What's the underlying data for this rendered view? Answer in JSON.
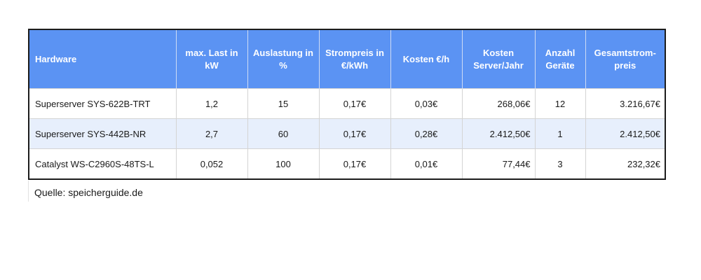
{
  "table": {
    "headers": [
      "Hardware",
      "max. Last in kW",
      "Auslastung in %",
      "Strompreis in €/kWh",
      "Kosten €/h",
      "Kosten Server/Jahr",
      "Anzahl Geräte",
      "Gesamtstrom-preis"
    ],
    "rows": [
      [
        "Superserver SYS-622B-TRT",
        "1,2",
        "15",
        "0,17€",
        "0,03€",
        "268,06€",
        "12",
        "3.216,67€"
      ],
      [
        "Superserver SYS-442B-NR",
        "2,7",
        "60",
        "0,17€",
        "0,28€",
        "2.412,50€",
        "1",
        "2.412,50€"
      ],
      [
        "Catalyst WS-C2960S-48TS-L",
        "0,052",
        "100",
        "0,17€",
        "0,01€",
        "77,44€",
        "3",
        "232,32€"
      ]
    ]
  },
  "source": "Quelle: speicherguide.de",
  "colors": {
    "header_bg": "#5b93f3",
    "header_text": "#ffffff",
    "alt_row_bg": "#e7effc"
  }
}
